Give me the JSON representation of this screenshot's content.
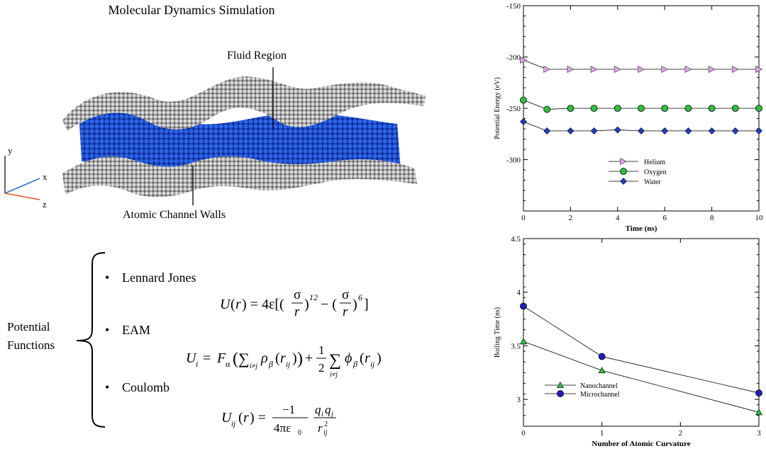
{
  "diagram": {
    "title": "Molecular Dynamics Simulation",
    "fluid_label": "Fluid Region",
    "walls_label": "Atomic Channel Walls",
    "axes": {
      "y": "y",
      "x": "x",
      "z": "z"
    },
    "colors": {
      "fluid": "#1a4fd6",
      "wall": "#9a9a9a",
      "x_axis": "#2f6fd1",
      "z_axis": "#e0542a"
    }
  },
  "potentials": {
    "group_label_line1": "Potential",
    "group_label_line2": "Functions",
    "items": [
      {
        "name": "Lennard Jones"
      },
      {
        "name": "EAM"
      },
      {
        "name": "Coulomb"
      }
    ]
  },
  "chart_data": [
    {
      "type": "line",
      "title": "",
      "xlabel": "Time (ns)",
      "ylabel": "Potential Energy (eV)",
      "xlim": [
        0,
        10
      ],
      "ylim": [
        -350,
        -150
      ],
      "xticks": [
        0,
        2,
        4,
        6,
        8,
        10
      ],
      "yticks": [
        -150,
        -200,
        -250,
        -300
      ],
      "x": [
        0,
        1,
        2,
        3,
        4,
        5,
        6,
        7,
        8,
        9,
        10
      ],
      "legend_position": "bottom-left",
      "series": [
        {
          "name": "Helium",
          "marker": "triangle-right",
          "color": "#e8a0f0",
          "values": [
            -203,
            -212,
            -212,
            -212,
            -212,
            -212,
            -212,
            -212,
            -212,
            -212,
            -212
          ]
        },
        {
          "name": "Oxygen",
          "marker": "circle",
          "color": "#2fbf3a",
          "values": [
            -242,
            -251,
            -250,
            -250,
            -250,
            -250,
            -250,
            -250,
            -250,
            -250,
            -250
          ]
        },
        {
          "name": "Water",
          "marker": "diamond",
          "color": "#1f3fbf",
          "values": [
            -263,
            -272,
            -272,
            -272,
            -271,
            -272,
            -272,
            -272,
            -272,
            -272,
            -272
          ]
        }
      ]
    },
    {
      "type": "line",
      "title": "",
      "xlabel": "Number of Atomic Curvature",
      "ylabel": "Boiling Time (ns)",
      "xlim": [
        0,
        3
      ],
      "ylim": [
        2.75,
        4.5
      ],
      "xticks": [
        0,
        1,
        2,
        3
      ],
      "yticks": [
        3,
        3.5,
        4,
        4.5
      ],
      "ytick_labels": [
        "3",
        "3.5",
        "4",
        "4.5"
      ],
      "x": [
        0,
        1,
        3
      ],
      "legend_position": "bottom-left",
      "series": [
        {
          "name": "Nanochannel",
          "marker": "triangle",
          "color": "#2fbf3a",
          "values": [
            3.54,
            3.27,
            2.88
          ]
        },
        {
          "name": "Microchannel",
          "marker": "circle",
          "color": "#1f1fbf",
          "values": [
            3.87,
            3.4,
            3.06
          ]
        }
      ]
    }
  ]
}
